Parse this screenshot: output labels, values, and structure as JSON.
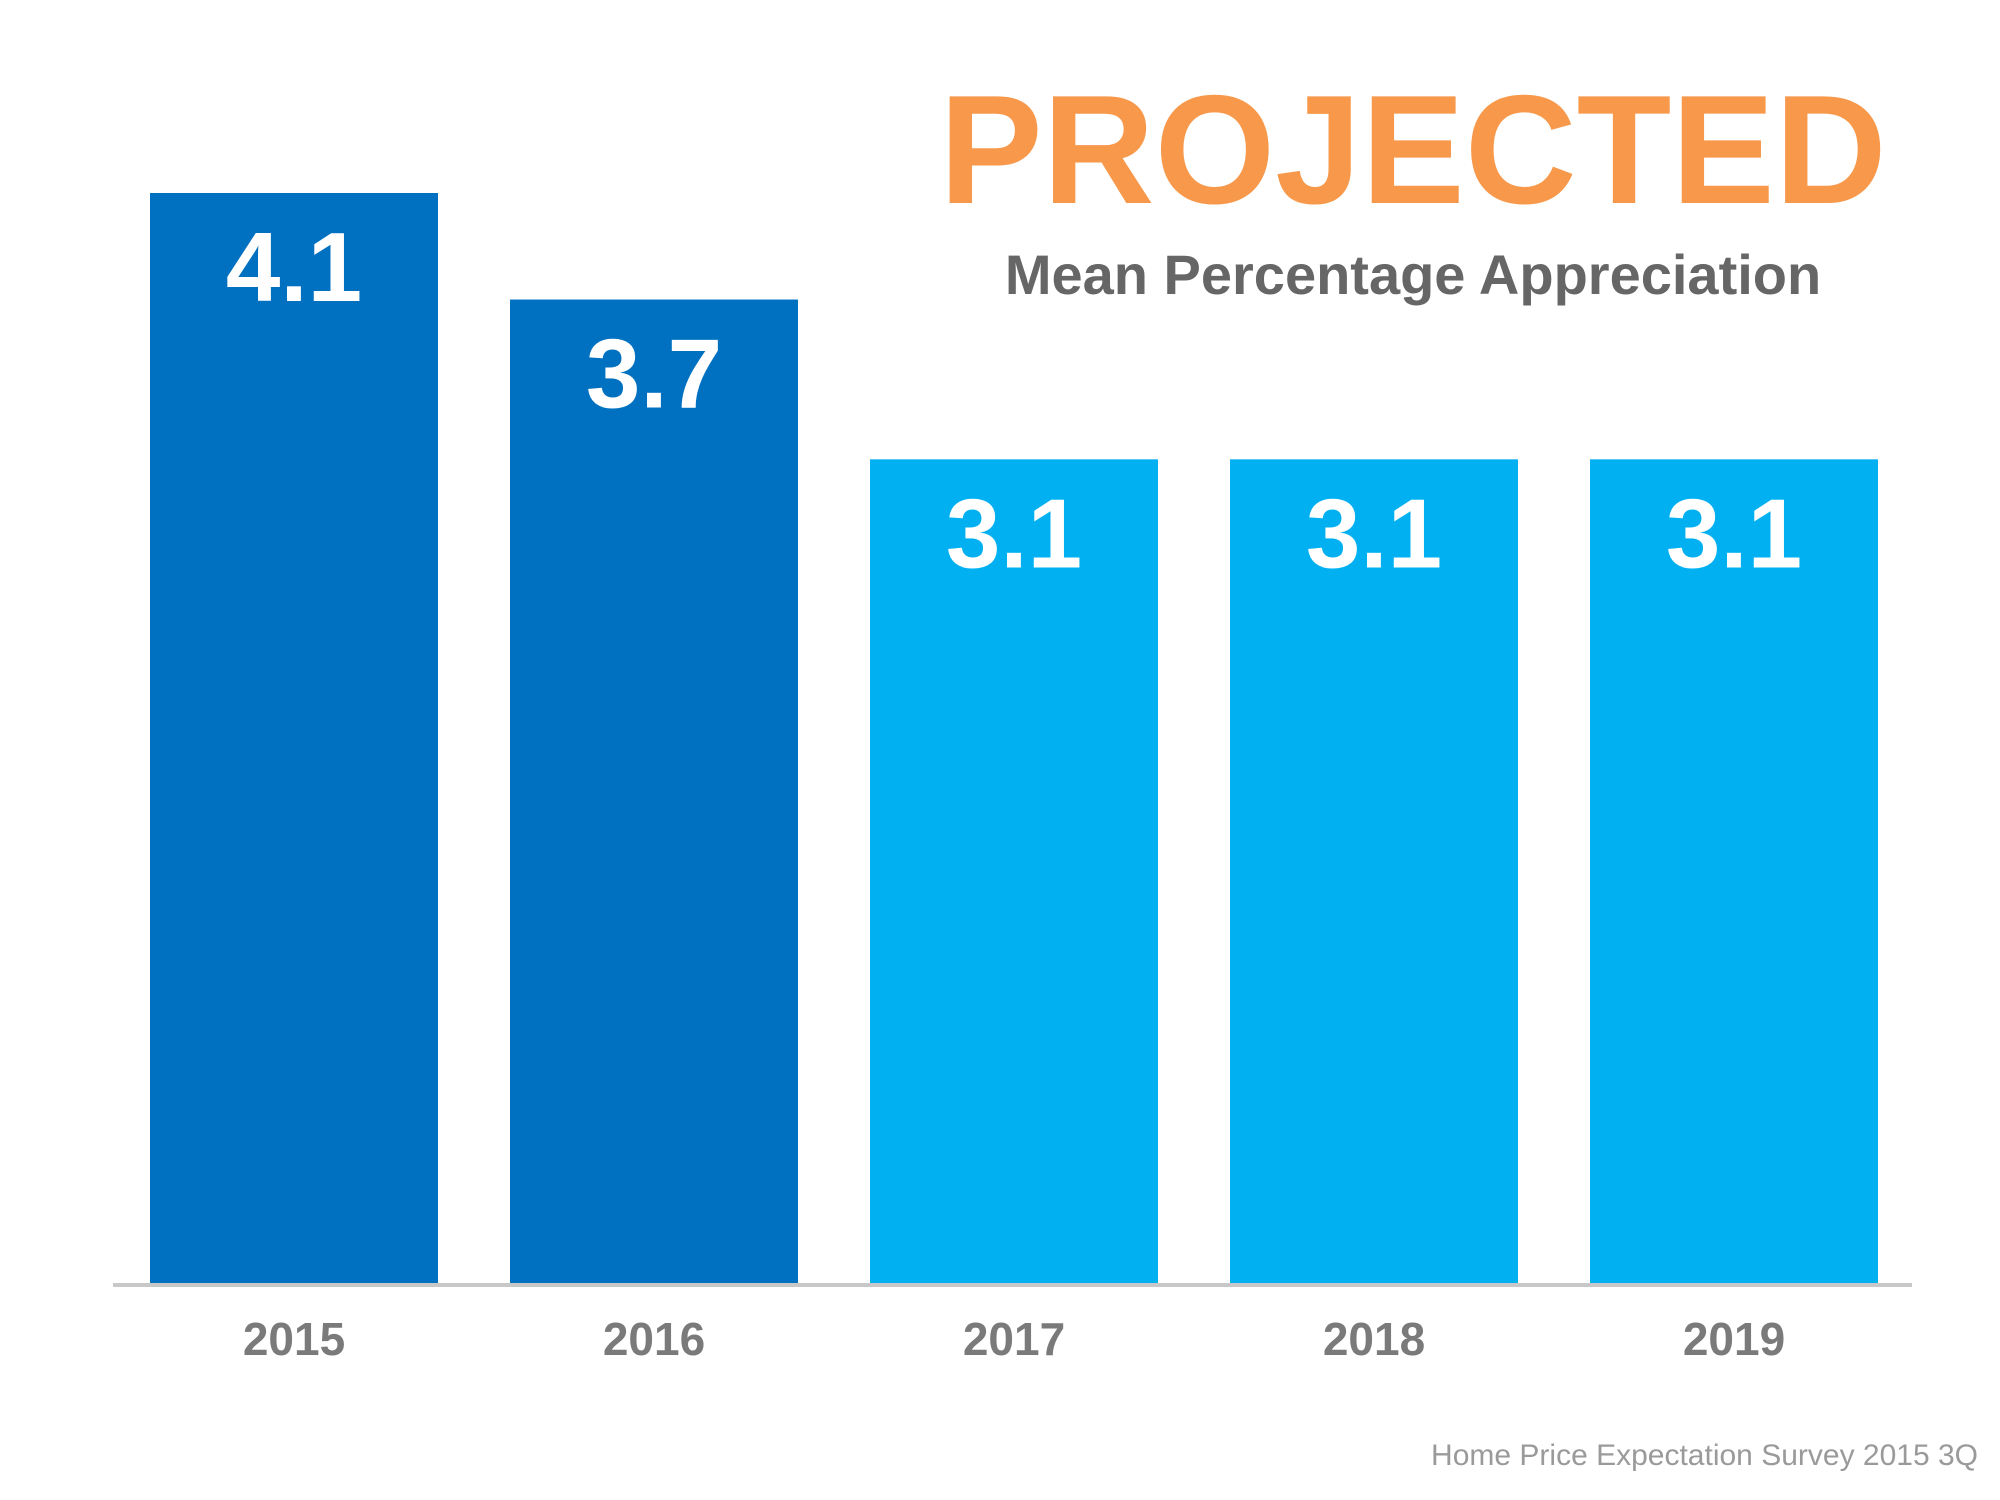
{
  "chart_data": {
    "type": "bar",
    "title": "PROJECTED",
    "subtitle": "Mean Percentage Appreciation",
    "categories": [
      "2015",
      "2016",
      "2017",
      "2018",
      "2019"
    ],
    "values": [
      4.1,
      3.7,
      3.1,
      3.1,
      3.1
    ],
    "value_labels": [
      "4.1",
      "3.7",
      "3.1",
      "3.1",
      "3.1"
    ],
    "bar_colors": [
      "#0070c0",
      "#0070c0",
      "#00b0f0",
      "#00b0f0",
      "#00b0f0"
    ],
    "ylim": [
      0,
      4.1
    ],
    "grid": false,
    "xlabel": "",
    "ylabel": ""
  },
  "colors": {
    "title": "#f7984a",
    "subtitle": "#666666",
    "axis": "#c8c8c8",
    "tick": "#7a7a7a",
    "source": "#9a9a9a"
  },
  "source_note": "Home Price Expectation Survey 2015 3Q"
}
